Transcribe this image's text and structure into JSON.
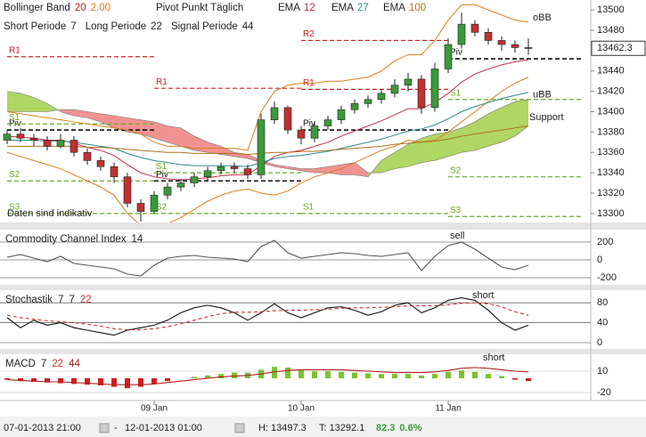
{
  "chart_data": [
    {
      "type": "candlestick",
      "bollinger": {
        "name": "Bollinger Band",
        "period": 20,
        "width": "2.00",
        "color": "#d9801e"
      },
      "pivot_title": "Pivot Punkt Täglich",
      "categories": [
        null,
        null,
        null,
        null,
        null,
        null,
        null,
        null,
        null,
        null,
        null,
        "09 Jan",
        null,
        null,
        null,
        null,
        null,
        null,
        null,
        null,
        null,
        null,
        "10 Jan",
        null,
        null,
        null,
        null,
        null,
        null,
        null,
        null,
        null,
        null,
        "11 Jan",
        null,
        null,
        null,
        null,
        null,
        null
      ],
      "open": [
        13372,
        13378,
        13374,
        13372,
        13366,
        13372,
        13360,
        13352,
        13346,
        13336,
        13310,
        13302,
        13318,
        13326,
        13330,
        13336,
        13342,
        13346,
        13344,
        13338,
        13392,
        13404,
        13382,
        13374,
        13386,
        13392,
        13402,
        13408,
        13412,
        13418,
        13426,
        13432,
        13404,
        13442,
        13466,
        13486,
        13478,
        13470,
        13466,
        13463
      ],
      "high": [
        13382,
        13384,
        13378,
        13376,
        13378,
        13376,
        13364,
        13356,
        13350,
        13340,
        13314,
        13322,
        13330,
        13334,
        13340,
        13346,
        13350,
        13350,
        13348,
        13398,
        13410,
        13406,
        13386,
        13390,
        13396,
        13406,
        13412,
        13416,
        13422,
        13432,
        13438,
        13436,
        13448,
        13472,
        13497.3,
        13490,
        13482,
        13474,
        13470,
        13472
      ],
      "low": [
        13368,
        13370,
        13366,
        13362,
        13364,
        13356,
        13348,
        13342,
        13330,
        13306,
        13292.1,
        13300,
        13314,
        13322,
        13326,
        13332,
        13338,
        13340,
        13334,
        13334,
        13388,
        13378,
        13368,
        13370,
        13382,
        13388,
        13398,
        13404,
        13408,
        13414,
        13420,
        13398,
        13400,
        13438,
        13462,
        13474,
        13466,
        13460,
        13458,
        13456
      ],
      "close": [
        13378,
        13374,
        13372,
        13366,
        13372,
        13360,
        13352,
        13346,
        13336,
        13310,
        13302,
        13318,
        13326,
        13330,
        13336,
        13342,
        13346,
        13344,
        13338,
        13392,
        13404,
        13382,
        13374,
        13386,
        13392,
        13402,
        13408,
        13412,
        13418,
        13426,
        13432,
        13404,
        13442,
        13466,
        13486,
        13478,
        13470,
        13466,
        13463,
        13462.3
      ],
      "up_color": "#3a9a3a",
      "down_color": "#c03030",
      "last_price": 13462.3,
      "ylim": [
        13292,
        13508
      ],
      "yticks": [
        13300,
        13320,
        13340,
        13360,
        13380,
        13400,
        13420,
        13440,
        13460,
        13480,
        13500
      ],
      "series": [
        {
          "name": "oBB",
          "color": "#d9801e",
          "values": [
            13400,
            13398,
            13396,
            13394,
            13392,
            13390,
            13388,
            13386,
            13384,
            13382,
            13378,
            13370,
            13366,
            13366,
            13364,
            13364,
            13364,
            13364,
            13362,
            13400,
            13420,
            13426,
            13428,
            13428,
            13430,
            13430,
            13432,
            13434,
            13440,
            13450,
            13456,
            13456,
            13470,
            13490,
            13505,
            13505,
            13500,
            13495,
            13490,
            13488
          ]
        },
        {
          "name": "uBB",
          "color": "#d9801e",
          "values": [
            13360,
            13356,
            13352,
            13348,
            13344,
            13338,
            13332,
            13326,
            13318,
            13300,
            13288,
            13286,
            13290,
            13296,
            13304,
            13312,
            13318,
            13322,
            13324,
            13320,
            13318,
            13322,
            13330,
            13336,
            13340,
            13344,
            13350,
            13356,
            13362,
            13366,
            13372,
            13370,
            13372,
            13380,
            13390,
            13400,
            13410,
            13420,
            13428,
            13434
          ]
        },
        {
          "name": "EMA",
          "period": 12,
          "color": "#c0304a",
          "values": [
            13376,
            13375,
            13374,
            13372,
            13372,
            13369,
            13365,
            13362,
            13357,
            13348,
            13340,
            13336,
            13334,
            13333,
            13334,
            13335,
            13337,
            13338,
            13338,
            13347,
            13356,
            13360,
            13362,
            13366,
            13370,
            13376,
            13381,
            13386,
            13391,
            13397,
            13403,
            13403,
            13409,
            13418,
            13429,
            13437,
            13442,
            13446,
            13449,
            13451
          ]
        },
        {
          "name": "EMA",
          "period": 27,
          "color": "#2a8a8a",
          "values": [
            13372,
            13372,
            13372,
            13371,
            13371,
            13370,
            13368,
            13366,
            13364,
            13359,
            13355,
            13352,
            13350,
            13348,
            13347,
            13347,
            13347,
            13347,
            13346,
            13350,
            13354,
            13356,
            13357,
            13359,
            13361,
            13364,
            13367,
            13370,
            13373,
            13377,
            13381,
            13383,
            13387,
            13393,
            13400,
            13405,
            13409,
            13413,
            13416,
            13419
          ]
        },
        {
          "name": "EMA",
          "period": 100,
          "color": "#b0701c",
          "values": [
            13366,
            13366,
            13366,
            13366,
            13366,
            13366,
            13365,
            13365,
            13364,
            13363,
            13362,
            13361,
            13360,
            13360,
            13359,
            13359,
            13359,
            13359,
            13358,
            13359,
            13360,
            13360,
            13361,
            13361,
            13362,
            13363,
            13364,
            13365,
            13366,
            13368,
            13369,
            13370,
            13371,
            13373,
            13376,
            13378,
            13380,
            13382,
            13384,
            13386
          ]
        }
      ],
      "cloud": {
        "up_color": "#9ccc3c",
        "down_color": "#ee7777",
        "span_a": [
          13420,
          13418,
          13414,
          13408,
          13400,
          13396,
          13394,
          13390,
          13384,
          13380,
          13378,
          13374,
          13370,
          13366,
          13362,
          13360,
          13358,
          13356,
          13354,
          13350,
          13346,
          13344,
          13342,
          13340,
          13340,
          13338,
          13338,
          13336,
          13352,
          13360,
          13368,
          13374,
          13378,
          13380,
          13384,
          13390,
          13398,
          13404,
          13410,
          13412
        ],
        "span_b": [
          13400,
          13400,
          13400,
          13400,
          13402,
          13402,
          13400,
          13398,
          13396,
          13394,
          13392,
          13390,
          13386,
          13384,
          13376,
          13370,
          13366,
          13360,
          13358,
          13352,
          13348,
          13346,
          13344,
          13344,
          13346,
          13348,
          13350,
          13340,
          13340,
          13344,
          13346,
          13350,
          13352,
          13356,
          13360,
          13362,
          13366,
          13370,
          13376,
          13386
        ]
      },
      "pivots": [
        {
          "label": "R1",
          "value": 13454,
          "from": 0,
          "to": 11,
          "color": "#d02020"
        },
        {
          "label": "Piv",
          "value": 13382,
          "from": 0,
          "to": 11,
          "color": "#111111"
        },
        {
          "label": "S1",
          "value": 13388,
          "from": 0,
          "to": 11,
          "color": "#6aaa20"
        },
        {
          "label": "S2",
          "value": 13332,
          "from": 0,
          "to": 11,
          "color": "#6aaa20"
        },
        {
          "label": "S3",
          "value": 13300,
          "from": 0,
          "to": 11,
          "color": "#6aaa20"
        },
        {
          "label": "R1",
          "value": 13423,
          "from": 11,
          "to": 22,
          "color": "#d02020"
        },
        {
          "label": "Piv",
          "value": 13332,
          "from": 11,
          "to": 22,
          "color": "#111111"
        },
        {
          "label": "S1",
          "value": 13340,
          "from": 11,
          "to": 22,
          "color": "#6aaa20"
        },
        {
          "label": "S2",
          "value": 13300,
          "from": 11,
          "to": 22,
          "color": "#6aaa20"
        },
        {
          "label": "R2",
          "value": 13470,
          "from": 22,
          "to": 33,
          "color": "#d02020"
        },
        {
          "label": "R1",
          "value": 13422,
          "from": 22,
          "to": 33,
          "color": "#d02020"
        },
        {
          "label": "Piv",
          "value": 13382,
          "from": 22,
          "to": 33,
          "color": "#111111"
        },
        {
          "label": "S1",
          "value": 13300,
          "from": 22,
          "to": 33,
          "color": "#6aaa20"
        },
        {
          "label": "Piv",
          "value": 13452,
          "from": 33,
          "to": 43,
          "color": "#111111"
        },
        {
          "label": "S1",
          "value": 13412,
          "from": 33,
          "to": 43,
          "color": "#6aaa20"
        },
        {
          "label": "S2",
          "value": 13336,
          "from": 33,
          "to": 43,
          "color": "#6aaa20"
        },
        {
          "label": "S3",
          "value": 13297,
          "from": 33,
          "to": 43,
          "color": "#6aaa20"
        }
      ],
      "support": "Support",
      "disclaimer": "Daten sind indikativ"
    },
    {
      "type": "line",
      "title": "Commodity Channel Index",
      "period": 14,
      "annotation": "sell",
      "ylim": [
        -300,
        300
      ],
      "yticks": [
        200,
        0,
        -200
      ],
      "series": [
        {
          "color": "#555555",
          "values": [
            30,
            60,
            20,
            -20,
            40,
            -40,
            -60,
            -80,
            -100,
            -160,
            -180,
            -60,
            20,
            40,
            50,
            30,
            20,
            10,
            -20,
            150,
            220,
            80,
            20,
            40,
            60,
            80,
            70,
            50,
            40,
            60,
            80,
            -120,
            40,
            160,
            200,
            120,
            20,
            -80,
            -110,
            -60
          ]
        }
      ]
    },
    {
      "type": "line",
      "title": "Stochastik",
      "params": [
        7,
        7,
        22
      ],
      "annotation": "short",
      "ylim": [
        0,
        100
      ],
      "yticks": [
        80,
        40,
        0
      ],
      "series": [
        {
          "color": "#111111",
          "values": [
            50,
            30,
            45,
            35,
            40,
            30,
            25,
            20,
            15,
            25,
            30,
            35,
            45,
            60,
            70,
            75,
            70,
            60,
            45,
            60,
            78,
            60,
            50,
            60,
            70,
            72,
            65,
            55,
            62,
            75,
            80,
            60,
            70,
            85,
            90,
            85,
            65,
            40,
            25,
            35
          ]
        },
        {
          "color": "#d03030",
          "dash": true,
          "values": [
            55,
            50,
            47,
            44,
            42,
            40,
            37,
            33,
            28,
            26,
            26,
            28,
            32,
            38,
            45,
            52,
            58,
            61,
            61,
            62,
            64,
            65,
            65,
            66,
            67,
            69,
            70,
            70,
            71,
            72,
            74,
            74,
            74,
            76,
            79,
            80,
            78,
            72,
            62,
            55
          ]
        }
      ]
    },
    {
      "type": "macd",
      "title": "MACD",
      "params": [
        7,
        22,
        44
      ],
      "annotation": "short",
      "ylim": [
        -30,
        30
      ],
      "yticks": [
        10,
        -20
      ],
      "hist": {
        "up_color": "#7cc02c",
        "down_color": "#d02020",
        "values": [
          -2,
          -4,
          -5,
          -6,
          -7,
          -8,
          -9,
          -10,
          -12,
          -14,
          -12,
          -8,
          -4,
          0,
          2,
          4,
          6,
          8,
          8,
          12,
          16,
          15,
          12,
          10,
          10,
          9,
          8,
          7,
          6,
          6,
          6,
          4,
          6,
          9,
          11,
          9,
          6,
          3,
          -2,
          -4
        ]
      },
      "series": [
        {
          "color": "#b02020",
          "values": [
            -2,
            -3,
            -4,
            -5,
            -5,
            -6,
            -7,
            -8,
            -9,
            -9,
            -9,
            -8,
            -6,
            -4,
            -2,
            0,
            2,
            3,
            4,
            6,
            9,
            11,
            12,
            12,
            12,
            12,
            11,
            10,
            9,
            8,
            8,
            8,
            9,
            11,
            14,
            15,
            14,
            12,
            10,
            9
          ]
        }
      ]
    }
  ],
  "periods": [
    {
      "label": "Short Periode",
      "value": 7
    },
    {
      "label": "Long Periode",
      "value": 22
    },
    {
      "label": "Signal Periode",
      "value": 44
    }
  ],
  "footer": {
    "from": "07-01-2013 21:00",
    "to": "12-01-2013 01:00",
    "high_label": "H:",
    "high": 13497.3,
    "low_label": "T:",
    "low": 13292.1,
    "change": 82.3,
    "change_pct": {
      "value": 0.6,
      "label": "0.6%"
    }
  }
}
